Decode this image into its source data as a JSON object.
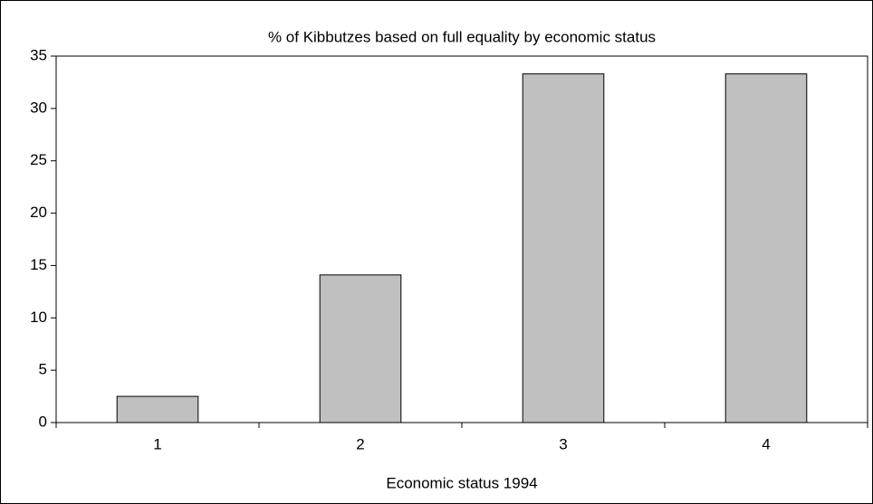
{
  "chart_data": {
    "type": "bar",
    "title": "% of Kibbutzes based on full equality by economic status",
    "x_label": "Economic status 1994",
    "categories": [
      "1",
      "2",
      "3",
      "4"
    ],
    "values": [
      2.5,
      14.1,
      33.3,
      33.3
    ],
    "color": "#c0c0c0",
    "ylim": [
      0,
      35
    ],
    "yticks": [
      0,
      5,
      10,
      15,
      20,
      25,
      30,
      35
    ],
    "grid": false
  }
}
